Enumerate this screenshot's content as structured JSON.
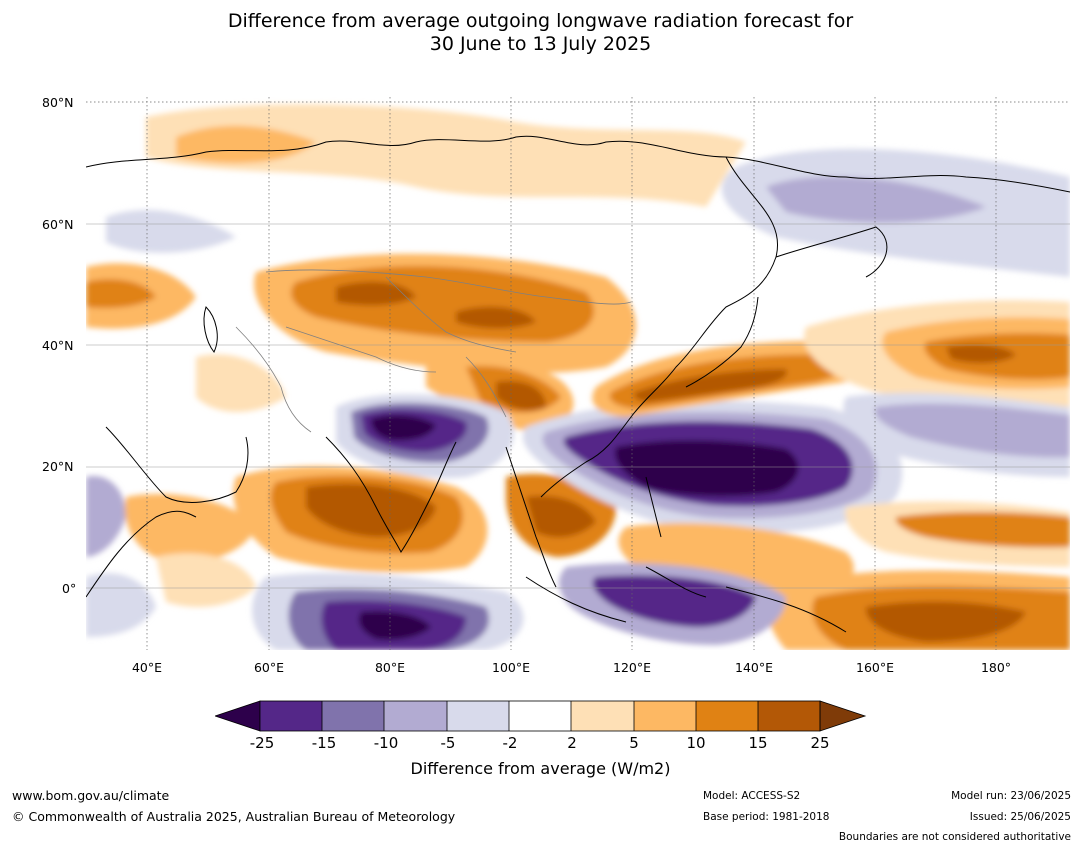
{
  "title": {
    "line1": "Difference from average outgoing longwave radiation forecast for",
    "line2": "30 June to 13 July 2025"
  },
  "map": {
    "lat_labels": [
      "80°N",
      "60°N",
      "40°N",
      "20°N",
      "0°"
    ],
    "lon_labels": [
      "40°E",
      "60°E",
      "80°E",
      "100°E",
      "120°E",
      "140°E",
      "160°E",
      "180°"
    ],
    "colors": {
      "lt_-25": "#2d004b",
      "-25_-15": "#542788",
      "-15_-10": "#8073ac",
      "-10_-5": "#b2abd2",
      "-5_-2": "#d8daeb",
      "-2_2": "#ffffff",
      "2_5": "#fee0b6",
      "5_10": "#fdb863",
      "10_15": "#e08214",
      "15_25": "#b35806",
      "gt_25": "#7f3b08"
    }
  },
  "colorbar": {
    "ticks": [
      "-25",
      "-15",
      "-10",
      "-5",
      "-2",
      "2",
      "5",
      "10",
      "15",
      "25"
    ],
    "label": "Difference from average (W/m2)"
  },
  "footer": {
    "url": "www.bom.gov.au/climate",
    "copyright": "© Commonwealth of Australia 2025, Australian Bureau of Meteorology",
    "model": "Model: ACCESS-S2",
    "base_period": "Base period: 1981-2018",
    "model_run": "Model run: 23/06/2025",
    "issued": "Issued: 25/06/2025",
    "disclaimer": "Boundaries are not considered authoritative"
  }
}
